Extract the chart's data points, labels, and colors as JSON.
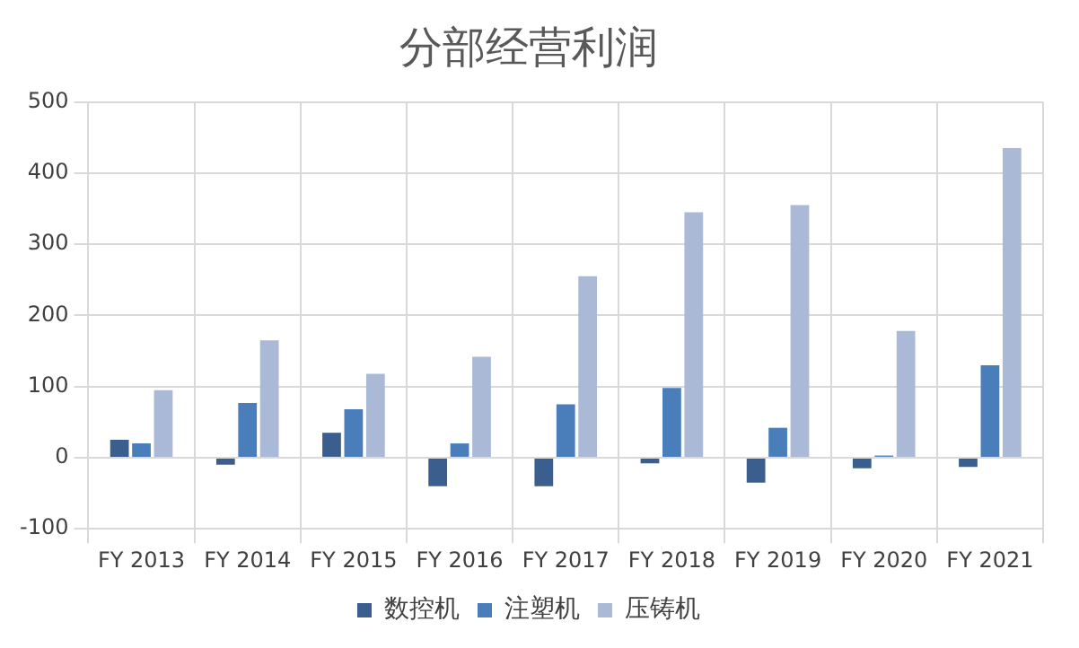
{
  "chart_data": {
    "type": "bar",
    "title": "分部经营利润",
    "categories": [
      "FY 2013",
      "FY 2014",
      "FY 2015",
      "FY 2016",
      "FY 2017",
      "FY 2018",
      "FY 2019",
      "FY 2020",
      "FY 2021"
    ],
    "series": [
      {
        "name": "数控机",
        "color": "#3a5f8f",
        "values": [
          25,
          -10,
          35,
          -40,
          -40,
          -8,
          -35,
          -15,
          -13
        ]
      },
      {
        "name": "注塑机",
        "color": "#4a7ebb",
        "values": [
          20,
          77,
          68,
          20,
          75,
          98,
          42,
          3,
          130
        ]
      },
      {
        "name": "压铸机",
        "color": "#a9b9d6",
        "values": [
          95,
          165,
          118,
          142,
          255,
          345,
          355,
          178,
          435
        ]
      }
    ],
    "ylim": [
      -100,
      500
    ],
    "yticks": [
      -100,
      0,
      100,
      200,
      300,
      400,
      500
    ],
    "grid": true,
    "legend": "bottom"
  }
}
